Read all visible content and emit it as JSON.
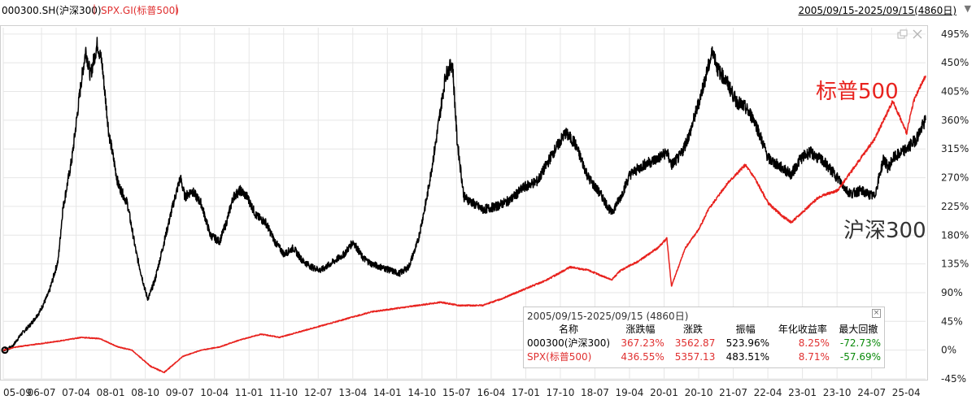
{
  "header": {
    "series1_label": "000300.SH(沪深300)",
    "separator": "|",
    "series2_label": "SPX.GI(标普500)",
    "date_range": "2005/09/15-2025/09/15(4860日)",
    "dropdown_icon": "triangle-down-icon"
  },
  "colors": {
    "hs300": "#000000",
    "spx": "#e8221e",
    "grid": "#e6e6e6",
    "up": "#e03030",
    "down": "#0a8a0a"
  },
  "chart_data": {
    "type": "line",
    "title": "",
    "xlabel": "",
    "ylabel": "",
    "y_unit": "%",
    "ylim": [
      -45,
      505
    ],
    "yticks": [
      -45,
      0,
      45,
      90,
      135,
      180,
      225,
      270,
      315,
      360,
      405,
      450,
      495
    ],
    "ytick_labels": [
      "-45%",
      "0%",
      "45%",
      "90%",
      "135%",
      "180%",
      "225%",
      "270%",
      "315%",
      "360%",
      "405%",
      "450%",
      "495%"
    ],
    "xlim": [
      2005.71,
      2025.71
    ],
    "xtick_labels": [
      "05-09",
      "06-07",
      "07-04",
      "08-01",
      "08-10",
      "09-07",
      "10-04",
      "11-01",
      "11-10",
      "12-07",
      "13-04",
      "14-01",
      "14-10",
      "15-07",
      "16-04",
      "17-01",
      "17-10",
      "18-07",
      "19-04",
      "20-01",
      "20-10",
      "21-07",
      "22-04",
      "23-01",
      "23-10",
      "24-07",
      "25-04"
    ],
    "xtick_positions": [
      2005.71,
      2006.54,
      2007.29,
      2008.04,
      2008.79,
      2009.54,
      2010.29,
      2011.04,
      2011.79,
      2012.54,
      2013.29,
      2014.04,
      2014.79,
      2015.54,
      2016.29,
      2017.04,
      2017.79,
      2018.54,
      2019.29,
      2020.04,
      2020.79,
      2021.54,
      2022.29,
      2023.04,
      2023.79,
      2024.54,
      2025.29
    ],
    "grid": true,
    "series": [
      {
        "name": "沪深300",
        "x": [
          2005.71,
          2005.9,
          2006.1,
          2006.3,
          2006.5,
          2006.7,
          2006.9,
          2007.0,
          2007.2,
          2007.4,
          2007.5,
          2007.6,
          2007.75,
          2007.85,
          2008.0,
          2008.2,
          2008.4,
          2008.6,
          2008.8,
          2008.85,
          2009.0,
          2009.2,
          2009.4,
          2009.55,
          2009.65,
          2009.8,
          2010.0,
          2010.2,
          2010.4,
          2010.55,
          2010.7,
          2010.85,
          2011.0,
          2011.2,
          2011.4,
          2011.6,
          2011.8,
          2012.0,
          2012.2,
          2012.4,
          2012.6,
          2012.9,
          2013.1,
          2013.3,
          2013.5,
          2013.7,
          2013.9,
          2014.1,
          2014.3,
          2014.5,
          2014.7,
          2014.9,
          2015.1,
          2015.3,
          2015.45,
          2015.55,
          2015.7,
          2015.9,
          2016.1,
          2016.4,
          2016.7,
          2017.0,
          2017.3,
          2017.6,
          2017.9,
          2018.1,
          2018.4,
          2018.7,
          2018.9,
          2019.1,
          2019.3,
          2019.6,
          2019.9,
          2020.1,
          2020.2,
          2020.4,
          2020.6,
          2020.8,
          2021.1,
          2021.2,
          2021.4,
          2021.6,
          2021.8,
          2022.0,
          2022.3,
          2022.5,
          2022.8,
          2023.0,
          2023.2,
          2023.5,
          2023.8,
          2024.0,
          2024.1,
          2024.3,
          2024.6,
          2024.8,
          2024.9,
          2025.0,
          2025.3,
          2025.5,
          2025.71
        ],
        "values": [
          0,
          5,
          25,
          40,
          60,
          90,
          140,
          220,
          300,
          420,
          470,
          430,
          480,
          450,
          340,
          260,
          230,
          150,
          90,
          80,
          110,
          170,
          230,
          270,
          240,
          250,
          230,
          180,
          170,
          200,
          240,
          250,
          240,
          210,
          200,
          170,
          150,
          160,
          140,
          130,
          125,
          140,
          150,
          170,
          145,
          135,
          130,
          125,
          120,
          130,
          170,
          240,
          330,
          430,
          450,
          330,
          240,
          230,
          220,
          225,
          235,
          255,
          265,
          305,
          340,
          325,
          270,
          240,
          215,
          240,
          275,
          290,
          300,
          310,
          290,
          305,
          340,
          390,
          470,
          440,
          420,
          390,
          380,
          360,
          300,
          290,
          275,
          300,
          310,
          295,
          270,
          250,
          245,
          250,
          240,
          300,
          285,
          300,
          315,
          330,
          360
        ]
      },
      {
        "name": "标普500",
        "x": [
          2005.71,
          2006.0,
          2006.5,
          2007.0,
          2007.4,
          2007.8,
          2008.2,
          2008.5,
          2008.9,
          2009.2,
          2009.6,
          2010.0,
          2010.4,
          2010.8,
          2011.3,
          2011.7,
          2012.2,
          2012.7,
          2013.2,
          2013.7,
          2014.2,
          2014.7,
          2015.2,
          2015.6,
          2016.1,
          2016.5,
          2017.0,
          2017.5,
          2018.0,
          2018.4,
          2018.9,
          2019.1,
          2019.5,
          2019.9,
          2020.1,
          2020.2,
          2020.3,
          2020.5,
          2020.8,
          2021.0,
          2021.4,
          2021.8,
          2022.0,
          2022.3,
          2022.6,
          2022.8,
          2023.1,
          2023.4,
          2023.8,
          2024.2,
          2024.6,
          2025.0,
          2025.3,
          2025.45,
          2025.71
        ],
        "values": [
          0,
          5,
          10,
          15,
          20,
          18,
          5,
          0,
          -25,
          -35,
          -10,
          0,
          5,
          15,
          25,
          20,
          30,
          40,
          50,
          60,
          65,
          70,
          75,
          70,
          70,
          80,
          95,
          110,
          130,
          125,
          110,
          125,
          140,
          160,
          175,
          100,
          120,
          160,
          190,
          220,
          260,
          290,
          270,
          230,
          210,
          200,
          220,
          240,
          250,
          290,
          330,
          390,
          340,
          390,
          430
        ]
      }
    ],
    "annotations": [
      {
        "text": "标普500",
        "series": "标普500"
      },
      {
        "text": "沪深300",
        "series": "沪深300"
      }
    ]
  },
  "stats_panel": {
    "title": "2005/09/15-2025/09/15 (4860日)",
    "close_icon": "close-icon",
    "columns": [
      "名称",
      "涨跌幅",
      "涨跌",
      "振幅",
      "年化收益率",
      "最大回撤"
    ],
    "rows": [
      [
        "000300(沪深300)",
        "367.23%",
        "3562.87",
        "523.96%",
        "8.25%",
        "-72.73%"
      ],
      [
        "SPX(标普500)",
        "436.55%",
        "5357.13",
        "483.51%",
        "8.71%",
        "-57.69%"
      ]
    ]
  }
}
